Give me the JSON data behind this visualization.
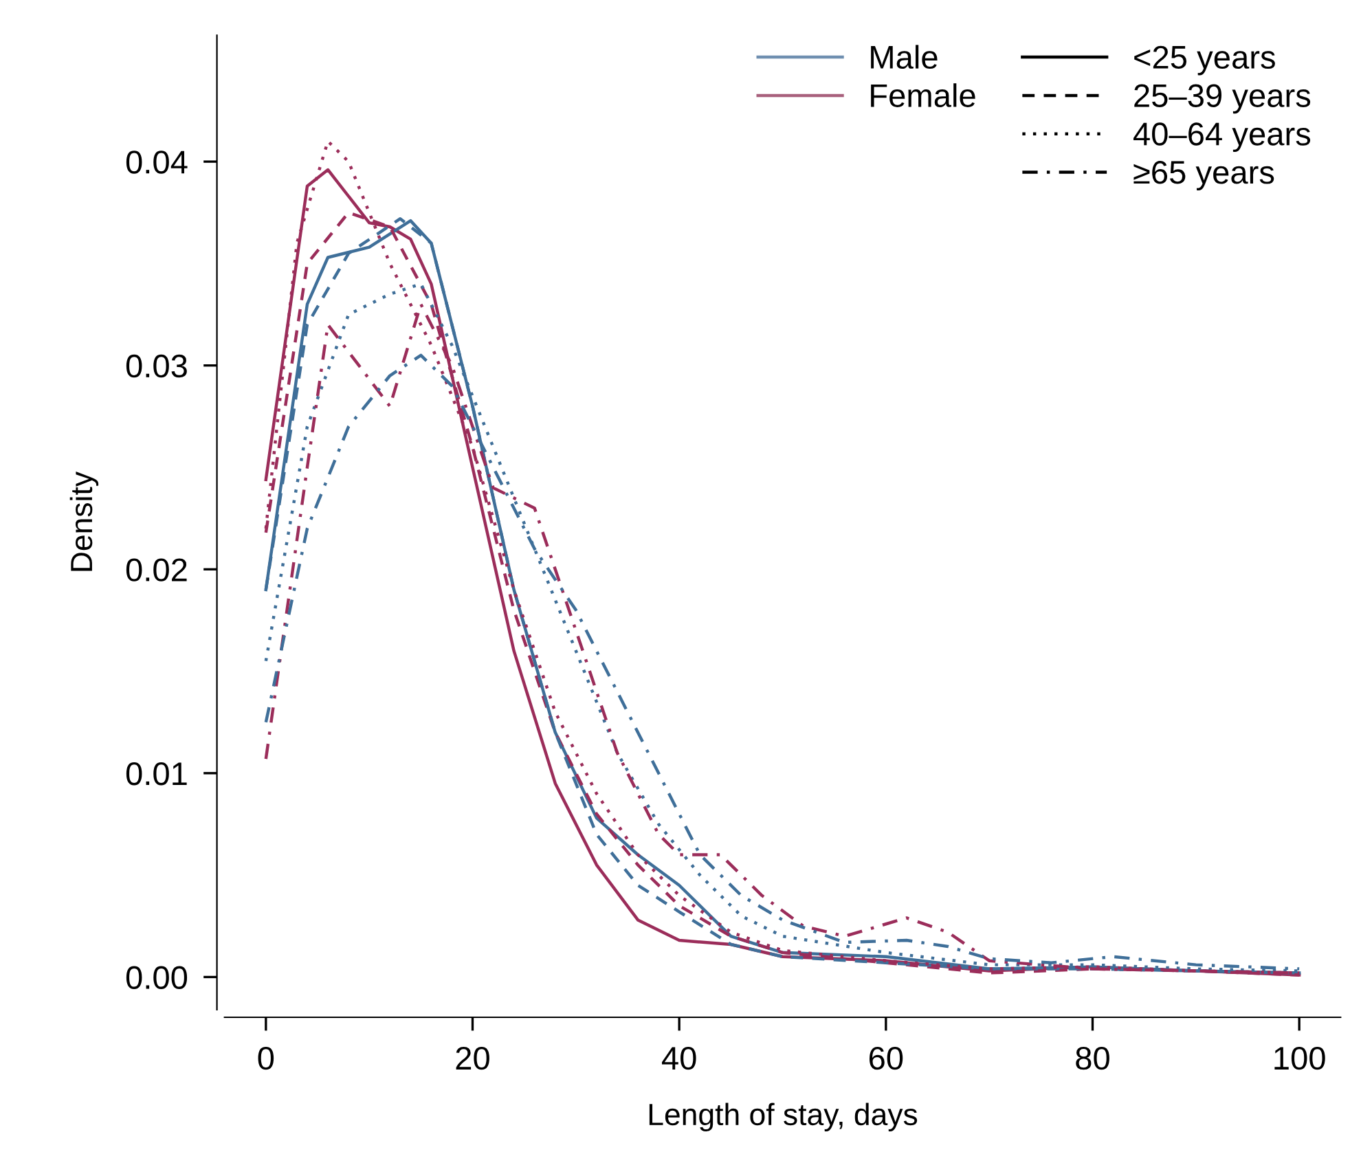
{
  "chart_data": {
    "type": "line",
    "xlabel": "Length of stay, days",
    "ylabel": "Density",
    "xlim": [
      -4,
      104
    ],
    "ylim": [
      -0.0016,
      0.0462
    ],
    "xticks": [
      0,
      20,
      40,
      60,
      80,
      100
    ],
    "yticks": [
      {
        "value": 0,
        "label": "0.00"
      },
      {
        "value": 0.01,
        "label": "0.01"
      },
      {
        "value": 0.02,
        "label": "0.02"
      },
      {
        "value": 0.03,
        "label": "0.03"
      },
      {
        "value": 0.04,
        "label": "0.04"
      }
    ],
    "grid": false,
    "legend": "top right",
    "marker": "none",
    "series": [
      {
        "color": "#9b2d5a",
        "line_style": "solid",
        "x": [
          0,
          4,
          6,
          10,
          12,
          14,
          16,
          20,
          24,
          28,
          32,
          36,
          40,
          45,
          50,
          60,
          70,
          80,
          90,
          100
        ],
        "values": [
          0.0244,
          0.0388,
          0.0396,
          0.037,
          0.0368,
          0.0362,
          0.034,
          0.025,
          0.016,
          0.0095,
          0.0055,
          0.0028,
          0.0018,
          0.0016,
          0.001,
          0.0008,
          0.0003,
          0.0005,
          0.0003,
          0.0001
        ]
      },
      {
        "color": "#3f6f99",
        "line_style": "solid",
        "x": [
          0,
          4,
          6,
          10,
          14,
          16,
          20,
          24,
          28,
          32,
          36,
          40,
          45,
          50,
          60,
          70,
          80,
          90,
          100
        ],
        "values": [
          0.019,
          0.033,
          0.0353,
          0.0358,
          0.0371,
          0.036,
          0.028,
          0.019,
          0.012,
          0.0078,
          0.006,
          0.0045,
          0.002,
          0.0012,
          0.001,
          0.0004,
          0.0005,
          0.0003,
          0.0002
        ]
      },
      {
        "color": "#9b2d5a",
        "line_style": "dashed",
        "x": [
          0,
          4,
          8,
          12,
          16,
          20,
          24,
          28,
          32,
          36,
          40,
          45,
          50,
          60,
          70,
          80,
          90,
          100
        ],
        "values": [
          0.0218,
          0.035,
          0.0375,
          0.0368,
          0.033,
          0.026,
          0.018,
          0.012,
          0.008,
          0.0055,
          0.0035,
          0.002,
          0.0012,
          0.0007,
          0.0002,
          0.0004,
          0.0003,
          0.0001
        ]
      },
      {
        "color": "#3f6f99",
        "line_style": "dashed",
        "x": [
          0,
          4,
          8,
          13,
          16,
          20,
          24,
          28,
          32,
          36,
          40,
          45,
          50,
          60,
          70,
          80,
          90,
          100
        ],
        "values": [
          0.019,
          0.032,
          0.0355,
          0.0372,
          0.036,
          0.028,
          0.019,
          0.012,
          0.007,
          0.0045,
          0.0032,
          0.0016,
          0.001,
          0.0007,
          0.0004,
          0.0004,
          0.0003,
          0.0002
        ]
      },
      {
        "color": "#9b2d5a",
        "line_style": "dotted",
        "x": [
          0,
          3,
          6,
          8,
          12,
          16,
          20,
          24,
          28,
          32,
          36,
          40,
          45,
          50,
          60,
          70,
          80,
          90,
          100
        ],
        "values": [
          0.022,
          0.036,
          0.041,
          0.04,
          0.035,
          0.031,
          0.026,
          0.019,
          0.013,
          0.009,
          0.006,
          0.004,
          0.0022,
          0.0013,
          0.0008,
          0.0004,
          0.0005,
          0.0003,
          0.0002
        ]
      },
      {
        "color": "#3f6f99",
        "line_style": "dotted",
        "x": [
          0,
          4,
          8,
          12,
          15,
          18,
          22,
          26,
          30,
          34,
          38,
          42,
          46,
          50,
          60,
          70,
          80,
          90,
          100
        ],
        "values": [
          0.0155,
          0.027,
          0.0325,
          0.0335,
          0.034,
          0.031,
          0.026,
          0.021,
          0.016,
          0.011,
          0.0075,
          0.005,
          0.003,
          0.002,
          0.0012,
          0.0006,
          0.0006,
          0.0004,
          0.0003
        ]
      },
      {
        "color": "#9b2d5a",
        "line_style": "dashdot",
        "x": [
          0,
          4,
          6,
          9,
          12,
          15,
          18,
          22,
          26,
          30,
          34,
          38,
          40,
          44,
          48,
          52,
          56,
          62,
          66,
          70,
          80,
          90,
          100
        ],
        "values": [
          0.0107,
          0.025,
          0.032,
          0.03,
          0.028,
          0.033,
          0.03,
          0.024,
          0.023,
          0.017,
          0.011,
          0.007,
          0.006,
          0.006,
          0.004,
          0.0025,
          0.002,
          0.0029,
          0.0022,
          0.0008,
          0.0004,
          0.0003,
          0.0002
        ]
      },
      {
        "color": "#3f6f99",
        "line_style": "dashdot",
        "x": [
          0,
          4,
          8,
          12,
          15,
          18,
          22,
          26,
          30,
          34,
          38,
          42,
          46,
          50,
          56,
          62,
          66,
          70,
          76,
          82,
          90,
          100
        ],
        "values": [
          0.0125,
          0.022,
          0.027,
          0.0295,
          0.0305,
          0.029,
          0.025,
          0.021,
          0.018,
          0.014,
          0.01,
          0.006,
          0.004,
          0.0028,
          0.0017,
          0.0018,
          0.0015,
          0.0009,
          0.0007,
          0.001,
          0.0006,
          0.0004
        ]
      },
      {
        "name": "Male",
        "color": "#6f8fb0"
      },
      {
        "name": "Female",
        "color": "#a8607c"
      },
      {
        "name": "<25 years",
        "color": "#000000",
        "line_style": "solid"
      },
      {
        "name": "25–39 years",
        "color": "#000000",
        "line_style": "dashed"
      },
      {
        "name": "40–64 years",
        "color": "#000000",
        "line_style": "dotted"
      },
      {
        "name": "≥65 years",
        "color": "#000000",
        "line_style": "dashdot"
      }
    ]
  }
}
